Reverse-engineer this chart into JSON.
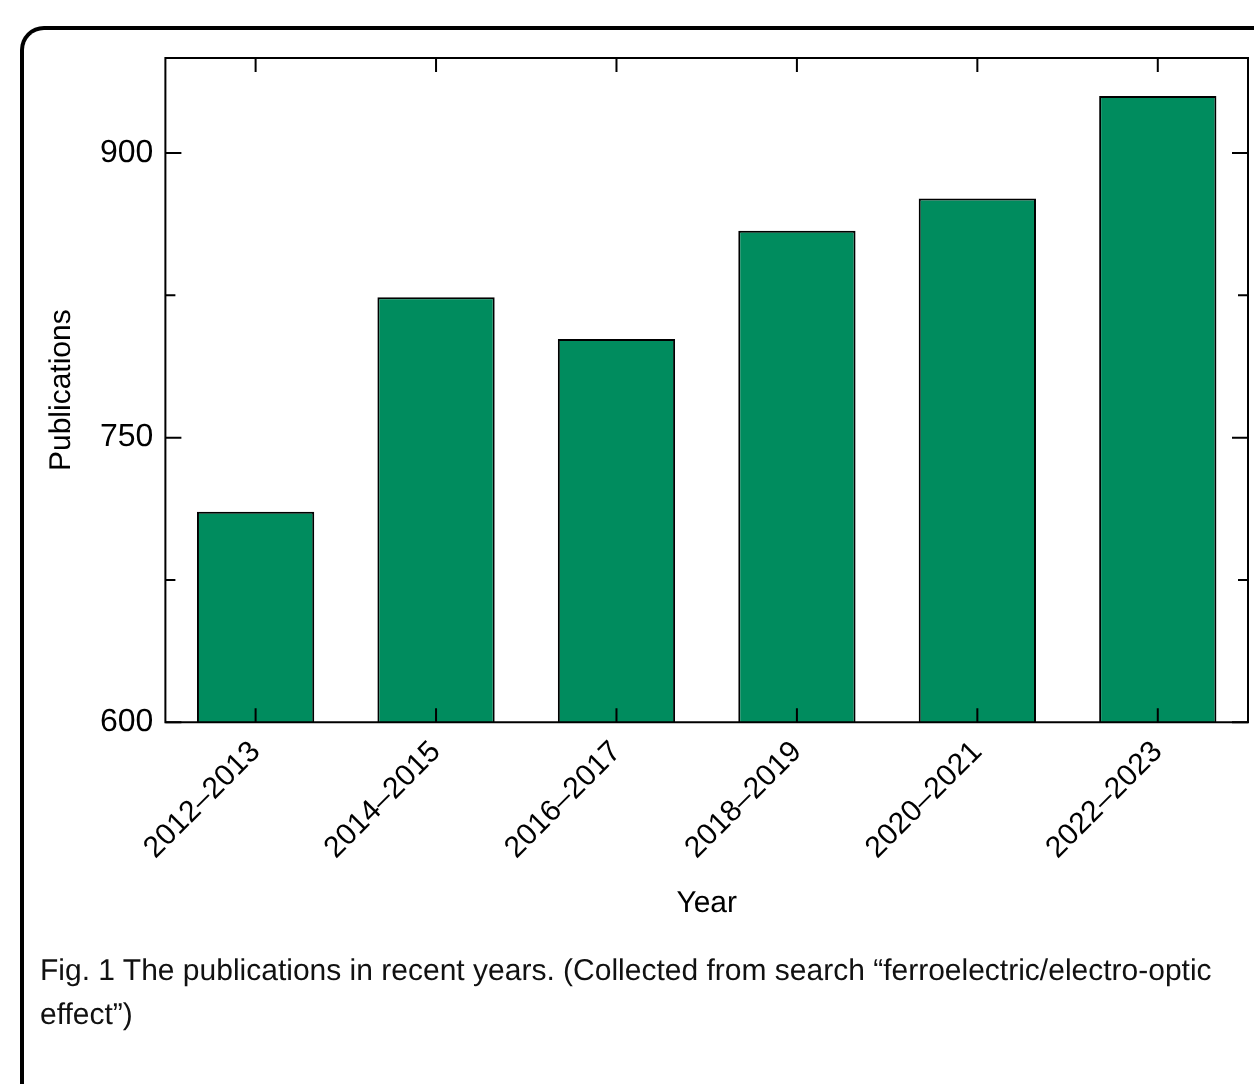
{
  "chart_data": {
    "type": "bar",
    "xlabel": "Year",
    "ylabel": "Publications",
    "categories": [
      "2012–2013",
      "2014–2015",
      "2016–2017",
      "2018–2019",
      "2020–2021",
      "2022–2023"
    ],
    "values": [
      711,
      824,
      802,
      859,
      876,
      930
    ],
    "color": "#008c5e",
    "ylim": [
      600,
      950
    ],
    "yticks": [
      600,
      {
        "value": 675,
        "label": null
      },
      750,
      {
        "value": 825,
        "label": null
      },
      900
    ],
    "grid": false,
    "legend": false,
    "annotations": [
      "Fig. 1 The publications in recent years. (Collected from search “ferroelectric/electro-optic effect”)"
    ]
  }
}
